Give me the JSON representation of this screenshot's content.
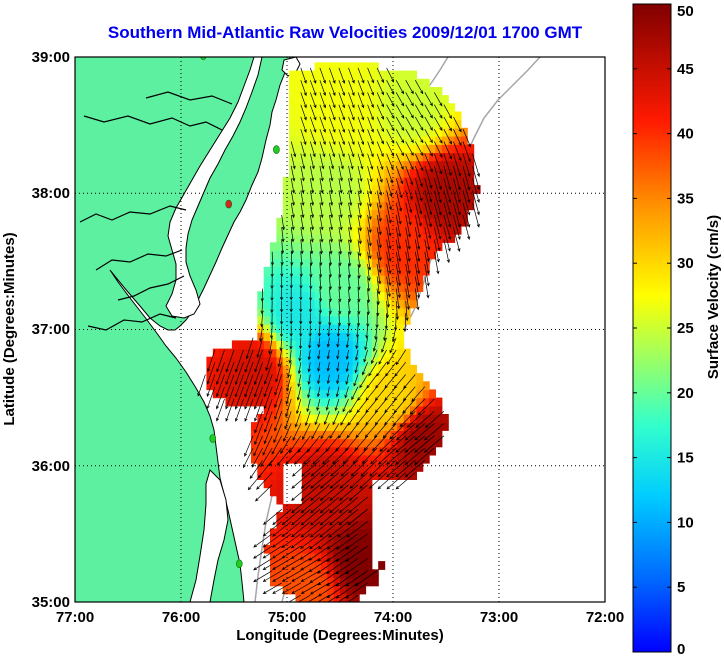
{
  "chart_data": {
    "type": "heatmap",
    "title": "Southern Mid-Atlantic Raw Velocities 2009/12/01 1700 GMT",
    "xlabel": "Longitude (Degrees:Minutes)",
    "ylabel": "Latitude (Degrees:Minutes)",
    "x_ticks": [
      "77:00",
      "76:00",
      "75:00",
      "74:00",
      "73:00",
      "72:00"
    ],
    "y_ticks": [
      "39:00",
      "38:00",
      "37:00",
      "36:00",
      "35:00"
    ],
    "xlim": [
      -77,
      -72
    ],
    "ylim": [
      35,
      39
    ],
    "grid": true,
    "colorbar": {
      "label": "Surface Velocity (cm/s)",
      "range": [
        0,
        50
      ],
      "ticks": [
        "0",
        "5",
        "10",
        "15",
        "20",
        "25",
        "30",
        "35",
        "40",
        "45",
        "50"
      ],
      "colormap": "jet"
    },
    "colors": {
      "land": "#5df0a0",
      "coastline": "#000000",
      "title": "#0000ee",
      "station_markers": "#22cc22",
      "station_inactive": "#dd2222"
    },
    "stations": [
      {
        "lon": -75.79,
        "lat": 39.01,
        "status": "active"
      },
      {
        "lon": -75.1,
        "lat": 38.32,
        "status": "active"
      },
      {
        "lon": -75.55,
        "lat": 37.92,
        "status": "inactive"
      },
      {
        "lon": -75.7,
        "lat": 36.2,
        "status": "active"
      },
      {
        "lon": -75.45,
        "lat": 35.28,
        "status": "active"
      }
    ],
    "velocity_regions": [
      {
        "lon": -74.5,
        "lat": 38.6,
        "speed": 27,
        "dir_deg": 290
      },
      {
        "lon": -73.8,
        "lat": 38.6,
        "speed": 25,
        "dir_deg": 300
      },
      {
        "lon": -74.6,
        "lat": 38.0,
        "speed": 24,
        "dir_deg": 280
      },
      {
        "lon": -73.5,
        "lat": 38.0,
        "speed": 47,
        "dir_deg": 285
      },
      {
        "lon": -73.9,
        "lat": 37.6,
        "speed": 40,
        "dir_deg": 280
      },
      {
        "lon": -74.5,
        "lat": 37.3,
        "speed": 20,
        "dir_deg": 275
      },
      {
        "lon": -74.9,
        "lat": 37.1,
        "speed": 15,
        "dir_deg": 270
      },
      {
        "lon": -74.6,
        "lat": 36.8,
        "speed": 11,
        "dir_deg": 260
      },
      {
        "lon": -75.3,
        "lat": 36.7,
        "speed": 44,
        "dir_deg": 250
      },
      {
        "lon": -74.0,
        "lat": 36.5,
        "speed": 30,
        "dir_deg": 230
      },
      {
        "lon": -73.7,
        "lat": 36.2,
        "speed": 48,
        "dir_deg": 220
      },
      {
        "lon": -74.6,
        "lat": 35.8,
        "speed": 45,
        "dir_deg": 220
      },
      {
        "lon": -74.3,
        "lat": 35.3,
        "speed": 50,
        "dir_deg": 215
      },
      {
        "lon": -74.8,
        "lat": 35.1,
        "speed": 38,
        "dir_deg": 210
      }
    ]
  }
}
